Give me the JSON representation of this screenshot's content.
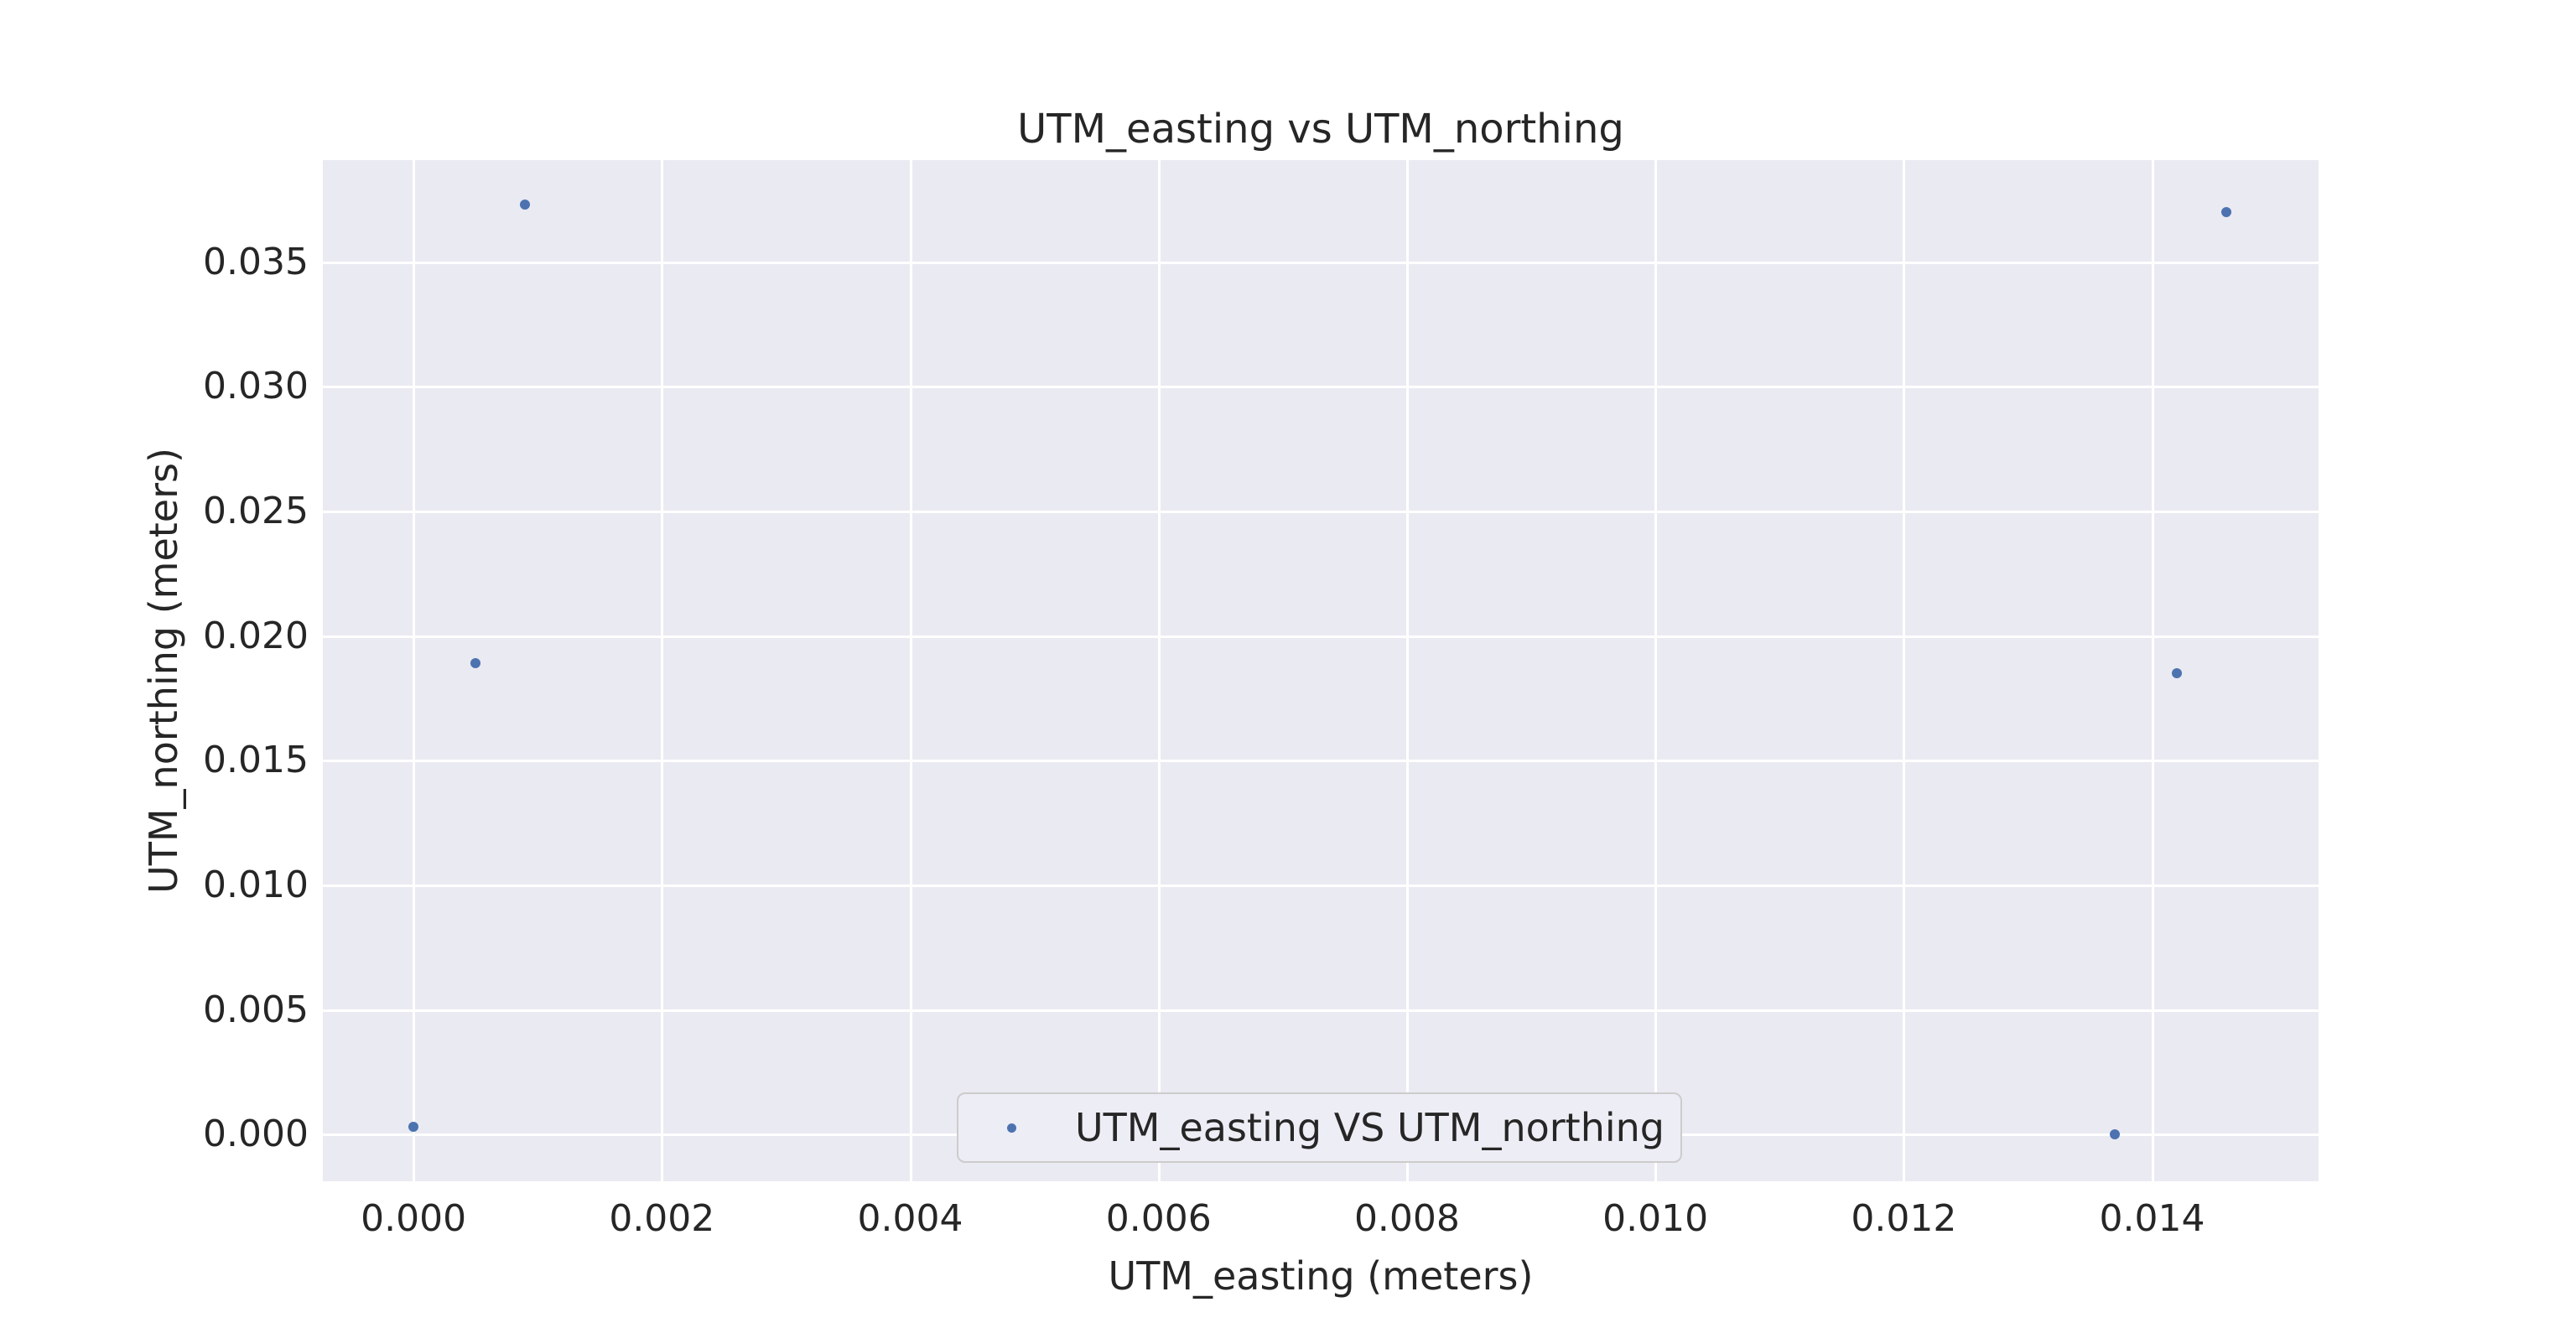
{
  "figure": {
    "title": "UTM_easting vs UTM_northing",
    "xlabel": "UTM_easting (meters)",
    "ylabel": "UTM_northing (meters)",
    "legend_label": "UTM_easting VS UTM_northing"
  },
  "colors": {
    "figure_background": "#ffffff",
    "axes_background": "#eaeaf2",
    "grid": "#ffffff",
    "text": "#262626",
    "marker": "#4c72b0",
    "legend_background": "#ededf5",
    "legend_border": "#cccccc"
  },
  "chart_data": {
    "type": "scatter",
    "title": "UTM_easting vs UTM_northing",
    "xlabel": "UTM_easting (meters)",
    "ylabel": "UTM_northing (meters)",
    "legend_entries": [
      "UTM_easting VS UTM_northing"
    ],
    "legend_position": "lower center",
    "grid": true,
    "xlim": [
      -0.00073,
      0.01534
    ],
    "ylim": [
      -0.00187,
      0.03909
    ],
    "xticks": [
      0.0,
      0.002,
      0.004,
      0.006,
      0.008,
      0.01,
      0.012,
      0.014
    ],
    "xtick_labels": [
      "0.000",
      "0.002",
      "0.004",
      "0.006",
      "0.008",
      "0.010",
      "0.012",
      "0.014"
    ],
    "yticks": [
      0.0,
      0.005,
      0.01,
      0.015,
      0.02,
      0.025,
      0.03,
      0.035
    ],
    "ytick_labels": [
      "0.000",
      "0.005",
      "0.010",
      "0.015",
      "0.020",
      "0.025",
      "0.030",
      "0.035"
    ],
    "series": [
      {
        "name": "UTM_easting VS UTM_northing",
        "points": [
          {
            "x": 0.0009,
            "y": 0.0373
          },
          {
            "x": 0.0005,
            "y": 0.0189
          },
          {
            "x": 0.0,
            "y": 0.0003
          },
          {
            "x": 0.0146,
            "y": 0.037
          },
          {
            "x": 0.0142,
            "y": 0.0185
          },
          {
            "x": 0.0137,
            "y": 0.0
          }
        ]
      }
    ]
  }
}
